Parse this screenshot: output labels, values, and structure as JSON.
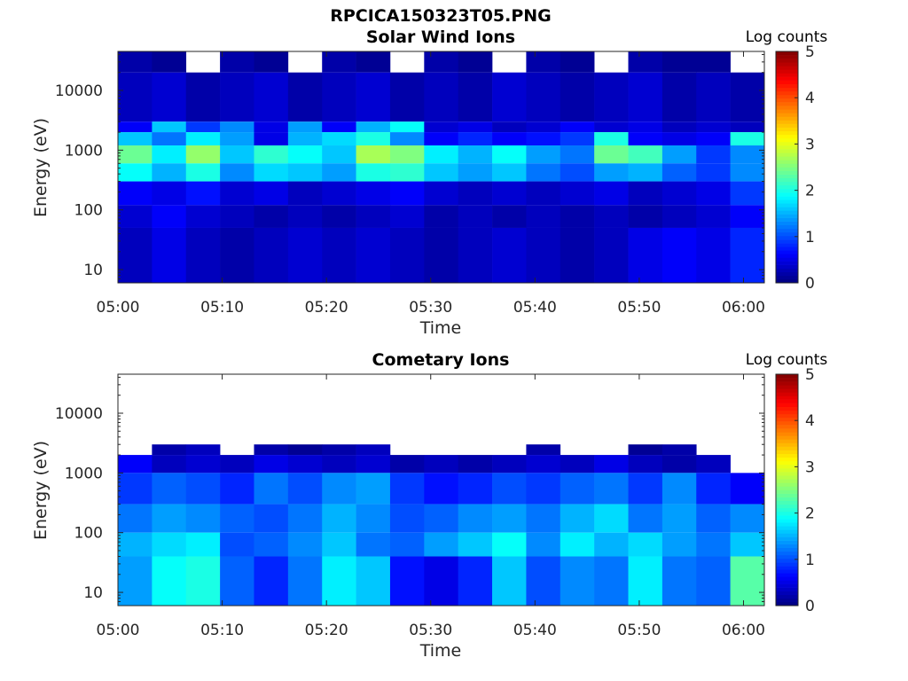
{
  "figure_title": "RPCICA150323T05.PNG",
  "colors": {
    "background": "#ffffff",
    "empty_bin": "#ffffff",
    "colormap": "jet"
  },
  "chart_data": [
    {
      "type": "heatmap",
      "title": "Solar Wind Ions",
      "xlabel": "Time",
      "ylabel": "Energy (eV)",
      "colorbar_label": "Log counts",
      "x_ticks": [
        "05:00",
        "05:10",
        "05:20",
        "05:30",
        "05:40",
        "05:50",
        "06:00"
      ],
      "y_ticks": [
        "10",
        "100",
        "1000",
        "10000"
      ],
      "y_scale": "log",
      "y_range_eV": [
        6,
        45000
      ],
      "x_range": [
        "05:00",
        "06:02"
      ],
      "colorbar_ticks": [
        "0",
        "1",
        "2",
        "3",
        "4",
        "5"
      ],
      "c_range": [
        0,
        5
      ],
      "time_bins": 19,
      "energy_bands_log_counts": [
        {
          "band": "20000-45000 eV",
          "values": [
            0.2,
            0.1,
            0.0,
            0.2,
            0.1,
            0.0,
            0.2,
            0.1,
            0.0,
            0.2,
            0.1,
            0.0,
            0.2,
            0.1,
            0.0,
            0.2,
            0.1,
            0.1,
            0.0
          ]
        },
        {
          "band": "3000-20000 eV",
          "values": [
            0.3,
            0.4,
            0.2,
            0.3,
            0.4,
            0.2,
            0.3,
            0.4,
            0.2,
            0.3,
            0.2,
            0.4,
            0.3,
            0.2,
            0.3,
            0.4,
            0.2,
            0.3,
            0.2
          ]
        },
        {
          "band": "2000-3000 eV",
          "values": [
            0.6,
            1.6,
            0.9,
            1.3,
            0.5,
            1.4,
            0.6,
            1.5,
            1.9,
            0.4,
            0.5,
            0.3,
            0.4,
            0.6,
            0.4,
            0.5,
            0.3,
            0.4,
            0.3
          ]
        },
        {
          "band": "1200-2000 eV",
          "values": [
            1.6,
            1.2,
            1.8,
            1.4,
            0.5,
            1.5,
            1.7,
            2.0,
            1.3,
            0.6,
            0.8,
            0.6,
            0.7,
            0.9,
            2.0,
            0.6,
            0.5,
            0.6,
            2.0
          ]
        },
        {
          "band": "600-1200 eV",
          "values": [
            2.4,
            1.8,
            2.6,
            1.6,
            2.1,
            1.9,
            1.6,
            2.7,
            2.5,
            1.8,
            1.5,
            1.9,
            1.4,
            1.2,
            2.4,
            2.2,
            1.4,
            0.9,
            1.3
          ]
        },
        {
          "band": "300-600 eV",
          "values": [
            1.9,
            1.5,
            2.0,
            1.3,
            1.7,
            1.6,
            1.4,
            2.0,
            2.1,
            1.6,
            1.4,
            1.6,
            1.2,
            1.0,
            1.4,
            1.5,
            1.1,
            0.9,
            1.3
          ]
        },
        {
          "band": "120-300 eV",
          "values": [
            0.6,
            0.5,
            0.7,
            0.4,
            0.5,
            0.3,
            0.4,
            0.5,
            0.6,
            0.4,
            0.3,
            0.4,
            0.3,
            0.4,
            0.5,
            0.3,
            0.4,
            0.5,
            0.9
          ]
        },
        {
          "band": "50-120 eV",
          "values": [
            0.4,
            0.6,
            0.4,
            0.3,
            0.2,
            0.3,
            0.2,
            0.3,
            0.4,
            0.2,
            0.3,
            0.2,
            0.3,
            0.2,
            0.3,
            0.2,
            0.3,
            0.4,
            0.6
          ]
        },
        {
          "band": "6-50 eV",
          "values": [
            0.3,
            0.5,
            0.3,
            0.2,
            0.3,
            0.4,
            0.3,
            0.4,
            0.3,
            0.2,
            0.3,
            0.4,
            0.3,
            0.2,
            0.3,
            0.5,
            0.6,
            0.5,
            0.8
          ]
        }
      ]
    },
    {
      "type": "heatmap",
      "title": "Cometary Ions",
      "xlabel": "Time",
      "ylabel": "Energy (eV)",
      "colorbar_label": "Log counts",
      "x_ticks": [
        "05:00",
        "05:10",
        "05:20",
        "05:30",
        "05:40",
        "05:50",
        "06:00"
      ],
      "y_ticks": [
        "10",
        "100",
        "1000",
        "10000"
      ],
      "y_scale": "log",
      "y_range_eV": [
        6,
        45000
      ],
      "x_range": [
        "05:00",
        "06:02"
      ],
      "colorbar_ticks": [
        "0",
        "1",
        "2",
        "3",
        "4",
        "5"
      ],
      "c_range": [
        0,
        5
      ],
      "time_bins": 19,
      "energy_bands_log_counts": [
        {
          "band": "2000-3000 eV",
          "values": [
            0.0,
            0.2,
            0.3,
            0.0,
            0.2,
            0.1,
            0.2,
            0.3,
            0.0,
            0.0,
            0.0,
            0.0,
            0.2,
            0.0,
            0.0,
            0.1,
            0.2,
            0.0,
            0.0
          ]
        },
        {
          "band": "1000-2000 eV",
          "values": [
            0.6,
            0.3,
            0.4,
            0.3,
            0.5,
            0.4,
            0.3,
            0.4,
            0.2,
            0.3,
            0.2,
            0.3,
            0.4,
            0.3,
            0.5,
            0.3,
            0.2,
            0.3,
            0.0
          ]
        },
        {
          "band": "300-1000 eV",
          "values": [
            0.9,
            1.1,
            1.0,
            0.8,
            1.2,
            1.0,
            1.3,
            1.4,
            0.9,
            0.7,
            0.8,
            1.0,
            0.9,
            1.1,
            1.2,
            0.9,
            1.3,
            0.8,
            0.6
          ]
        },
        {
          "band": "100-300 eV",
          "values": [
            1.2,
            1.4,
            1.3,
            1.1,
            1.0,
            1.2,
            1.5,
            1.3,
            1.0,
            1.1,
            1.3,
            1.4,
            1.2,
            1.5,
            1.7,
            1.2,
            1.4,
            1.1,
            1.3
          ]
        },
        {
          "band": "40-100 eV",
          "values": [
            1.5,
            1.7,
            1.8,
            1.0,
            1.1,
            1.3,
            1.6,
            1.2,
            1.1,
            1.4,
            1.6,
            1.9,
            1.3,
            1.8,
            1.5,
            1.7,
            1.4,
            1.2,
            1.6
          ]
        },
        {
          "band": "6-40 eV",
          "values": [
            1.4,
            1.9,
            2.0,
            1.1,
            0.8,
            1.2,
            1.8,
            1.6,
            0.7,
            0.5,
            0.8,
            1.6,
            1.0,
            1.3,
            1.2,
            1.8,
            1.2,
            1.1,
            2.3
          ]
        }
      ]
    }
  ]
}
